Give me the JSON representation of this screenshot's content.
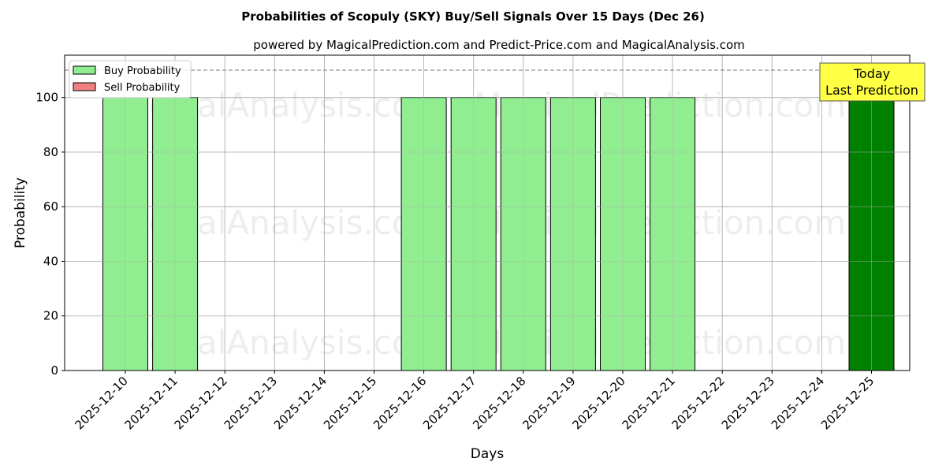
{
  "chart_data": {
    "type": "bar",
    "title": "Probabilities of Scopuly (SKY) Buy/Sell Signals Over 15 Days (Dec 26)",
    "subtitle": "powered by MagicalPrediction.com and Predict-Price.com and MagicalAnalysis.com",
    "xlabel": "Days",
    "ylabel": "Probability",
    "ylim": [
      0,
      115.5
    ],
    "yticks": [
      0,
      20,
      40,
      60,
      80,
      100
    ],
    "grid": true,
    "reference_line": 110,
    "categories": [
      "2025-12-10",
      "2025-12-11",
      "2025-12-12",
      "2025-12-13",
      "2025-12-14",
      "2025-12-15",
      "2025-12-16",
      "2025-12-17",
      "2025-12-18",
      "2025-12-19",
      "2025-12-20",
      "2025-12-21",
      "2025-12-22",
      "2025-12-23",
      "2025-12-24",
      "2025-12-25"
    ],
    "series": [
      {
        "name": "Buy Probability",
        "color": "#90ee90",
        "values": [
          100,
          100,
          0,
          0,
          0,
          0,
          100,
          100,
          100,
          100,
          100,
          100,
          0,
          0,
          0,
          100
        ]
      },
      {
        "name": "Sell Probability",
        "color": "#f08080",
        "values": [
          0,
          0,
          0,
          0,
          0,
          0,
          0,
          0,
          0,
          0,
          0,
          0,
          0,
          0,
          0,
          0
        ]
      }
    ],
    "today_index": 15,
    "today_color": "#008000",
    "legend": "top-left",
    "annotation": {
      "line1": "Today",
      "line2": "Last Prediction"
    },
    "watermarks": [
      "MagicalAnalysis.com",
      "MagicalPrediction.com"
    ]
  }
}
